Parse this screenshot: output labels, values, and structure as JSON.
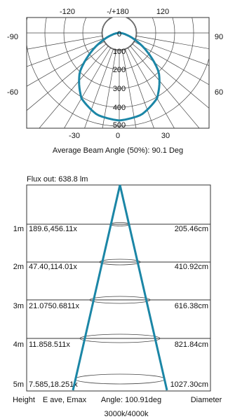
{
  "polar": {
    "caption": "Average Beam Angle (50%): 90.1 Deg",
    "angle_labels_top": [
      "-120",
      "-/+180",
      "120"
    ],
    "angle_labels_side": {
      "left_upper": "-90",
      "right_upper": "90",
      "left_lower": "-60",
      "right_lower": "60"
    },
    "angle_labels_bottom": [
      "-30",
      "0",
      "30"
    ],
    "radial_labels": [
      "0",
      "100",
      "200",
      "300",
      "400",
      "500"
    ]
  },
  "cone": {
    "title": "Flux out: 638.8 lm",
    "rows": [
      {
        "height": "1m",
        "values": "189.6,456.11x",
        "diameter": "205.46cm"
      },
      {
        "height": "2m",
        "values": "47.40,114.01x",
        "diameter": "410.92cm"
      },
      {
        "height": "3m",
        "values": "21.0750.6811x",
        "diameter": "616.38cm"
      },
      {
        "height": "4m",
        "values": "11.858.511x",
        "diameter": "821.84cm"
      },
      {
        "height": "5m",
        "values": "7.585,18.251x",
        "diameter": "1027.30cm"
      }
    ],
    "footer": {
      "height_label": "Height",
      "values_label": "E ave, Emax",
      "angle_label": "Angle: 100.91deg",
      "diameter_label": "Diameter"
    },
    "color_temp": "3000k/4000k"
  },
  "chart_data": [
    {
      "type": "polar",
      "title": "",
      "caption": "Average Beam Angle (50%): 90.1 Deg",
      "r_ticks": [
        0,
        100,
        200,
        300,
        400,
        500
      ],
      "r_lim": [
        0,
        500
      ],
      "theta_ticks_deg": [
        -120,
        180,
        120,
        -90,
        90,
        -60,
        60,
        -30,
        0,
        30
      ],
      "series": [
        {
          "values": [
            {
              "angle": 0,
              "intensity": 470
            },
            {
              "angle": 15,
              "intensity": 455
            },
            {
              "angle": 30,
              "intensity": 405
            },
            {
              "angle": 45,
              "intensity": 300
            },
            {
              "angle": 55,
              "intensity": 190
            },
            {
              "angle": 65,
              "intensity": 100
            },
            {
              "angle": 75,
              "intensity": 40
            },
            {
              "angle": 85,
              "intensity": 10
            },
            {
              "angle": 90,
              "intensity": 0
            }
          ]
        }
      ],
      "colors": {
        "curve": "#1b86a6",
        "grid": "#444444"
      }
    },
    {
      "type": "table",
      "title": "Flux out: 638.8 lm",
      "columns": [
        "Height",
        "E ave, Emax",
        "Diameter"
      ],
      "rows": [
        [
          "1m",
          "189.6,456.11x",
          "205.46cm"
        ],
        [
          "2m",
          "47.40,114.01x",
          "410.92cm"
        ],
        [
          "3m",
          "21.0750.6811x",
          "616.38cm"
        ],
        [
          "4m",
          "11.858.511x",
          "821.84cm"
        ],
        [
          "5m",
          "7.585,18.251x",
          "1027.30cm"
        ]
      ],
      "beam_angle_deg": 100.91,
      "colors": {
        "cone": "#1b86a6"
      }
    }
  ]
}
